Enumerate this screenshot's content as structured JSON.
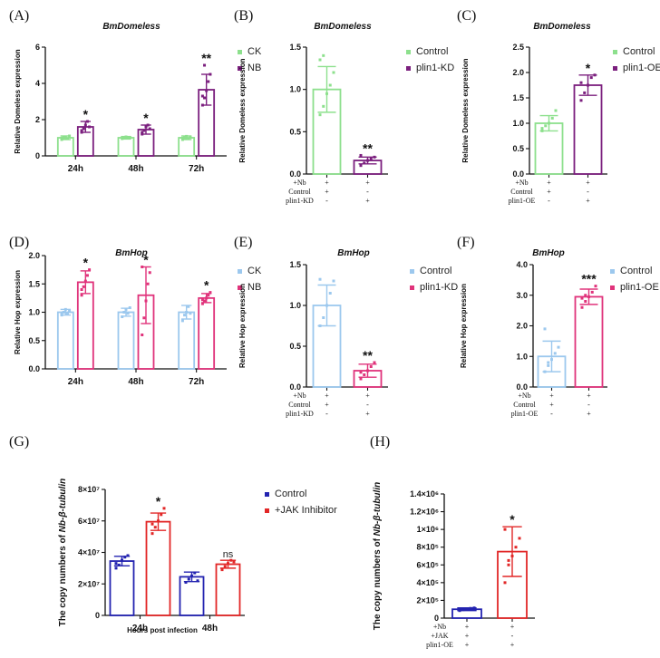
{
  "chart_data": [
    {
      "id": "A",
      "panel": "(A)",
      "type": "bar",
      "title": "BmDomeless",
      "ylabel": "Relative Domeless expression",
      "ylim": [
        0,
        6
      ],
      "yticks": [
        0,
        2,
        4,
        6
      ],
      "categories": [
        "24h",
        "48h",
        "72h"
      ],
      "series": [
        {
          "name": "CK",
          "color": "#8de08d",
          "values": [
            1.0,
            1.0,
            1.0
          ],
          "err": [
            0.1,
            0.07,
            0.1
          ],
          "points": [
            [
              0.9,
              1.0,
              1.05,
              0.95,
              1.1,
              0.98
            ],
            [
              0.95,
              1.0,
              1.05,
              0.98,
              1.02
            ],
            [
              0.9,
              1.0,
              1.08,
              0.95,
              1.02,
              0.98
            ]
          ]
        },
        {
          "name": "NB",
          "color": "#7b1f7e",
          "values": [
            1.6,
            1.45,
            3.65
          ],
          "err": [
            0.3,
            0.25,
            0.85
          ],
          "points": [
            [
              1.3,
              1.5,
              1.7,
              1.9,
              1.6,
              1.4
            ],
            [
              1.2,
              1.4,
              1.6,
              1.7,
              1.5,
              1.3
            ],
            [
              2.8,
              3.2,
              3.6,
              4.1,
              4.5,
              3.3,
              5.0
            ]
          ]
        }
      ],
      "annotations": [
        {
          "text": "*",
          "category": 0,
          "series": 1
        },
        {
          "text": "*",
          "category": 1,
          "series": 1
        },
        {
          "text": "**",
          "category": 2,
          "series": 1
        }
      ]
    },
    {
      "id": "B",
      "panel": "(B)",
      "type": "bar",
      "title": "BmDomeless",
      "ylabel": "Relative Domeless expression",
      "ylim": [
        0,
        1.5
      ],
      "yticks": [
        0.0,
        0.5,
        1.0,
        1.5
      ],
      "ytickfmt": 1,
      "categories": [
        "1",
        "2"
      ],
      "series": [
        {
          "name": "Control",
          "color": "#8de08d",
          "values": [
            1.0,
            null
          ],
          "err": [
            0.27,
            null
          ],
          "points": [
            [
              0.7,
              0.8,
              0.95,
              1.05,
              1.2,
              1.35,
              1.4
            ],
            []
          ]
        },
        {
          "name": "plin1-KD",
          "color": "#7b1f7e",
          "values": [
            null,
            0.16
          ],
          "err": [
            null,
            0.04
          ],
          "points": [
            [],
            [
              0.1,
              0.13,
              0.16,
              0.18,
              0.2,
              0.22
            ]
          ]
        }
      ],
      "annotations": [
        {
          "text": "**",
          "category": 1,
          "series": 1
        }
      ],
      "conditions": {
        "labels": [
          "+Nb",
          "Control",
          "plin1-KD"
        ],
        "values": [
          [
            "+",
            "+",
            "-"
          ],
          [
            "+",
            "-",
            "+"
          ]
        ]
      }
    },
    {
      "id": "C",
      "panel": "(C)",
      "type": "bar",
      "title": "BmDomeless",
      "ylabel": "Relative Domeless expression",
      "ylim": [
        0,
        2.5
      ],
      "yticks": [
        0.0,
        0.5,
        1.0,
        1.5,
        2.0,
        2.5
      ],
      "ytickfmt": 1,
      "categories": [
        "1",
        "2"
      ],
      "series": [
        {
          "name": "Control",
          "color": "#8de08d",
          "values": [
            1.0,
            null
          ],
          "err": [
            0.15,
            null
          ],
          "points": [
            [
              0.85,
              0.95,
              1.0,
              1.1,
              1.25,
              0.9
            ],
            []
          ]
        },
        {
          "name": "plin1-OE",
          "color": "#7b1f7e",
          "values": [
            null,
            1.75
          ],
          "err": [
            null,
            0.2
          ],
          "points": [
            [],
            [
              1.45,
              1.6,
              1.75,
              1.9,
              1.95,
              1.8
            ]
          ]
        }
      ],
      "annotations": [
        {
          "text": "*",
          "category": 1,
          "series": 1
        }
      ],
      "conditions": {
        "labels": [
          "+Nb",
          "Control",
          "plin1-OE"
        ],
        "values": [
          [
            "+",
            "+",
            "-"
          ],
          [
            "+",
            "-",
            "+"
          ]
        ]
      }
    },
    {
      "id": "D",
      "panel": "(D)",
      "type": "bar",
      "title": "BmHop",
      "ylabel": "Relative Hop expression",
      "ylim": [
        0,
        2.0
      ],
      "yticks": [
        0.0,
        0.5,
        1.0,
        1.5,
        2.0
      ],
      "ytickfmt": 1,
      "categories": [
        "24h",
        "48h",
        "72h"
      ],
      "series": [
        {
          "name": "CK",
          "color": "#9cc8ee",
          "values": [
            1.0,
            1.0,
            1.0
          ],
          "err": [
            0.05,
            0.07,
            0.12
          ],
          "points": [
            [
              0.95,
              1.0,
              1.05,
              0.98,
              1.02,
              0.97
            ],
            [
              0.92,
              1.0,
              1.05,
              0.98,
              1.08
            ],
            [
              0.85,
              0.95,
              1.0,
              1.1,
              0.98
            ]
          ]
        },
        {
          "name": "NB",
          "color": "#e0337b",
          "values": [
            1.53,
            1.3,
            1.25
          ],
          "err": [
            0.2,
            0.5,
            0.08
          ],
          "points": [
            [
              1.3,
              1.45,
              1.55,
              1.65,
              1.75,
              1.4
            ],
            [
              0.6,
              0.9,
              1.2,
              1.5,
              1.7,
              1.8
            ],
            [
              1.15,
              1.2,
              1.25,
              1.3,
              1.35,
              1.22
            ]
          ]
        }
      ],
      "annotations": [
        {
          "text": "*",
          "category": 0,
          "series": 1
        },
        {
          "text": "*",
          "category": 1,
          "series": 1
        },
        {
          "text": "*",
          "category": 2,
          "series": 1
        }
      ]
    },
    {
      "id": "E",
      "panel": "(E)",
      "type": "bar",
      "title": "BmHop",
      "ylabel": "Relative Hop expression",
      "ylim": [
        0,
        1.5
      ],
      "yticks": [
        0.0,
        0.5,
        1.0,
        1.5
      ],
      "ytickfmt": 1,
      "categories": [
        "1",
        "2"
      ],
      "series": [
        {
          "name": "Control",
          "color": "#9cc8ee",
          "values": [
            1.0,
            null
          ],
          "err": [
            0.25,
            null
          ],
          "points": [
            [
              0.75,
              0.85,
              1.0,
              1.15,
              1.3,
              1.32
            ],
            []
          ]
        },
        {
          "name": "plin1-KD",
          "color": "#e0337b",
          "values": [
            null,
            0.2
          ],
          "err": [
            null,
            0.08
          ],
          "points": [
            [],
            [
              0.1,
              0.15,
              0.2,
              0.25,
              0.3,
              0.18
            ]
          ]
        }
      ],
      "annotations": [
        {
          "text": "**",
          "category": 1,
          "series": 1
        }
      ],
      "conditions": {
        "labels": [
          "+Nb",
          "Control",
          "plin1-KD"
        ],
        "values": [
          [
            "+",
            "+",
            "-"
          ],
          [
            "+",
            "-",
            "+"
          ]
        ]
      }
    },
    {
      "id": "F",
      "panel": "(F)",
      "type": "bar",
      "title": "BmHop",
      "ylabel": "Relative Hop expression",
      "ylim": [
        0,
        4.0
      ],
      "yticks": [
        0.0,
        1.0,
        2.0,
        3.0,
        4.0
      ],
      "ytickfmt": 1,
      "categories": [
        "1",
        "2"
      ],
      "series": [
        {
          "name": "Control",
          "color": "#9cc8ee",
          "values": [
            1.0,
            null
          ],
          "err": [
            0.5,
            null
          ],
          "points": [
            [
              0.5,
              0.7,
              0.9,
              1.1,
              1.3,
              1.9,
              0.8
            ],
            []
          ]
        },
        {
          "name": "plin1-OE",
          "color": "#e0337b",
          "values": [
            null,
            2.95
          ],
          "err": [
            null,
            0.25
          ],
          "points": [
            [],
            [
              2.6,
              2.8,
              2.95,
              3.1,
              3.3,
              2.9,
              3.0
            ]
          ]
        }
      ],
      "annotations": [
        {
          "text": "***",
          "category": 1,
          "series": 1
        }
      ],
      "conditions": {
        "labels": [
          "+Nb",
          "Control",
          "plin1-OE"
        ],
        "values": [
          [
            "+",
            "+",
            "-"
          ],
          [
            "+",
            "-",
            "+"
          ]
        ]
      }
    },
    {
      "id": "G",
      "panel": "(G)",
      "type": "bar",
      "title": "",
      "ylabel": "The copy numbers of Nb-β-tubulin",
      "xlabel": "Hours post infection",
      "ylim": [
        0,
        80000000
      ],
      "yticks": [
        0,
        20000000,
        40000000,
        60000000,
        80000000
      ],
      "yticklabels": [
        "0",
        "2×10⁷",
        "4×10⁷",
        "6×10⁷",
        "8×10⁷"
      ],
      "categories": [
        "24h",
        "48h"
      ],
      "series": [
        {
          "name": "Control",
          "color": "#2323b0",
          "values": [
            34500000,
            24500000
          ],
          "err": [
            3000000,
            3000000
          ],
          "points": [
            [
              30000000,
              32000000,
              35000000,
              37000000,
              38000000,
              33000000
            ],
            [
              21000000,
              23000000,
              25000000,
              27000000,
              22000000
            ]
          ]
        },
        {
          "name": "+JAK Inhibitor",
          "color": "#e22727",
          "values": [
            59500000,
            32500000
          ],
          "err": [
            5500000,
            2500000
          ],
          "points": [
            [
              52000000,
              56000000,
              60000000,
              64000000,
              68000000,
              58000000
            ],
            [
              29000000,
              31000000,
              33000000,
              35000000,
              34000000
            ]
          ]
        }
      ],
      "annotations": [
        {
          "text": "*",
          "category": 0,
          "series": 1,
          "size": "big"
        },
        {
          "text": "ns",
          "category": 1,
          "series": 1,
          "size": "small"
        }
      ]
    },
    {
      "id": "H",
      "panel": "(H)",
      "type": "bar",
      "title": "",
      "ylabel": "The copy numbers of Nb-β-tubulin",
      "ylim": [
        0,
        1400000
      ],
      "yticks": [
        0,
        200000,
        400000,
        600000,
        800000,
        1000000,
        1200000,
        1400000
      ],
      "yticklabels": [
        "0",
        "2×10⁵",
        "4×10⁵",
        "6×10⁵",
        "8×10⁵",
        "1×10⁶",
        "1.2×10⁶",
        "1.4×10⁶"
      ],
      "categories": [
        "1",
        "2"
      ],
      "series": [
        {
          "name": "Control",
          "color": "#2323b0",
          "values": [
            100000,
            null
          ],
          "err": [
            15000,
            null
          ],
          "points": [
            [
              85000,
              95000,
              100000,
              110000,
              115000
            ],
            []
          ]
        },
        {
          "name": "JAK",
          "color": "#e22727",
          "values": [
            null,
            750000
          ],
          "err": [
            null,
            280000
          ],
          "points": [
            [],
            [
              400000,
              600000,
              700000,
              800000,
              900000,
              1000000,
              650000
            ]
          ]
        }
      ],
      "annotations": [
        {
          "text": "*",
          "category": 1,
          "series": 1,
          "size": "big"
        }
      ],
      "conditions": {
        "labels": [
          "+Nb",
          "+JAK",
          "plin1-OE"
        ],
        "values": [
          [
            "+",
            "+",
            "+"
          ],
          [
            "+",
            "-",
            "+"
          ]
        ]
      }
    }
  ]
}
